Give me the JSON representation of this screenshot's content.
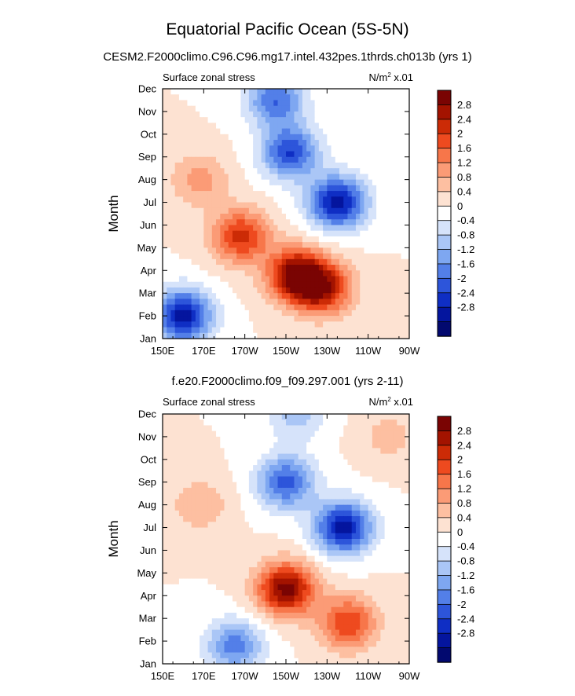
{
  "page": {
    "title": "Equatorial Pacific Ocean (5S-5N)"
  },
  "chart_data": [
    {
      "type": "heatmap",
      "subtitle": "CESM2.F2000climo.C96.C96.mg17.intel.432pes.1thrds.ch013b (yrs 1)",
      "left_label": "Surface zonal stress",
      "right_label": "N/m",
      "right_label_sup": "2",
      "right_label_tail": " x.01",
      "xlabel": "",
      "ylabel": "Month",
      "xlim_deg_east": [
        150,
        270
      ],
      "x_ticks": [
        "150E",
        "170E",
        "170W",
        "150W",
        "130W",
        "110W",
        "90W"
      ],
      "y_ticks": [
        "Jan",
        "Feb",
        "Mar",
        "Apr",
        "May",
        "Jun",
        "Jul",
        "Aug",
        "Sep",
        "Oct",
        "Nov",
        "Dec"
      ],
      "color_levels": [
        -2.8,
        -2.4,
        -2,
        -1.6,
        -1.2,
        -0.8,
        -0.4,
        0,
        0.4,
        0.8,
        1.2,
        1.6,
        2,
        2.4,
        2.8
      ],
      "approx_features": [
        {
          "lon": 160,
          "month": 2,
          "value": -3.0
        },
        {
          "lon": 215,
          "month": 3.8,
          "value": 3.0
        },
        {
          "lon": 228,
          "month": 3.2,
          "value": 2.4
        },
        {
          "lon": 235,
          "month": 7,
          "value": -3.0
        },
        {
          "lon": 212,
          "month": 9.2,
          "value": -2.4
        },
        {
          "lon": 188,
          "month": 5.5,
          "value": 2.2
        },
        {
          "lon": 168,
          "month": 8,
          "value": 1.0
        },
        {
          "lon": 205,
          "month": 11.5,
          "value": -2.0
        }
      ]
    },
    {
      "type": "heatmap",
      "subtitle": "f.e20.F2000climo.f09_f09.297.001 (yrs 2-11)",
      "left_label": "Surface zonal stress",
      "right_label": "N/m",
      "right_label_sup": "2",
      "right_label_tail": " x.01",
      "xlabel": "",
      "ylabel": "Month",
      "xlim_deg_east": [
        150,
        270
      ],
      "x_ticks": [
        "150E",
        "170E",
        "170W",
        "150W",
        "130W",
        "110W",
        "90W"
      ],
      "y_ticks": [
        "Jan",
        "Feb",
        "Mar",
        "Apr",
        "May",
        "Jun",
        "Jul",
        "Aug",
        "Sep",
        "Oct",
        "Nov",
        "Dec"
      ],
      "color_levels": [
        -2.8,
        -2.4,
        -2,
        -1.6,
        -1.2,
        -0.8,
        -0.4,
        0,
        0.4,
        0.8,
        1.2,
        1.6,
        2,
        2.4,
        2.8
      ],
      "approx_features": [
        {
          "lon": 210,
          "month": 4.3,
          "value": 3.0
        },
        {
          "lon": 240,
          "month": 2.8,
          "value": 2.0
        },
        {
          "lon": 238,
          "month": 7,
          "value": -3.0
        },
        {
          "lon": 210,
          "month": 9,
          "value": -2.2
        },
        {
          "lon": 185,
          "month": 1.8,
          "value": -1.8
        },
        {
          "lon": 215,
          "month": 12,
          "value": -1.0
        },
        {
          "lon": 168,
          "month": 8,
          "value": 0.8
        },
        {
          "lon": 260,
          "month": 11,
          "value": 0.6
        }
      ]
    }
  ],
  "colorbar": {
    "labels": [
      "2.8",
      "2.4",
      "2",
      "1.6",
      "1.2",
      "0.8",
      "0.4",
      "0",
      "-0.4",
      "-0.8",
      "-1.2",
      "-1.6",
      "-2",
      "-2.4",
      "-2.8"
    ],
    "colors": [
      "#7a0403",
      "#a31300",
      "#cc2b06",
      "#ee4a1f",
      "#f7764a",
      "#fb9b76",
      "#fdbfa1",
      "#fde2d2",
      "#ffffff",
      "#d6e3fa",
      "#aac6f6",
      "#7ea7f1",
      "#537fe8",
      "#2d55da",
      "#0f2ec4",
      "#04159e",
      "#02096f"
    ]
  }
}
